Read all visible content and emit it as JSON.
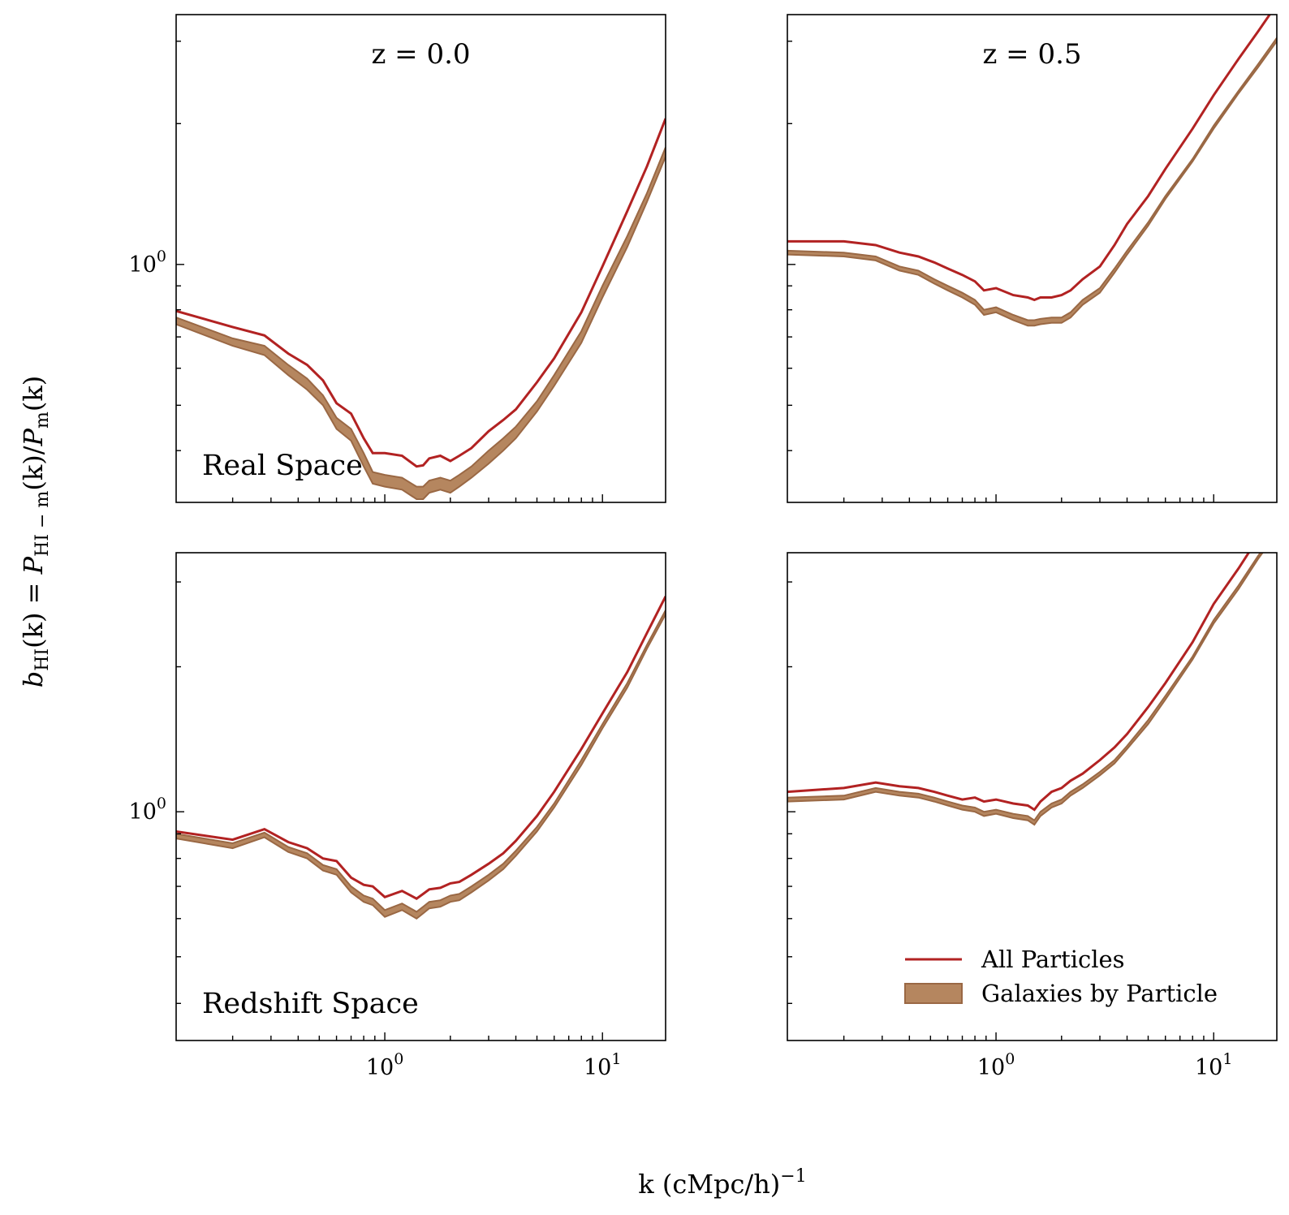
{
  "chart_data": {
    "type": "line",
    "layout": "2x2 grid, shared x axis per column, shared y axis per row",
    "xlabel": "k (cMpc/h)",
    "xlabel_exponent": "−1",
    "ylabel": {
      "lhs_sym": "b",
      "lhs_sub": "HI",
      "eq_mid": "(k) = ",
      "num_sym": "P",
      "num_sub": "HI − m",
      "num_arg": "(k)/",
      "den_sym": "P",
      "den_sub": "m",
      "den_arg": "(k)"
    },
    "xscale": "log",
    "yscale": "log",
    "xlim": [
      0.11,
      19.5
    ],
    "x_tick_labels": [
      {
        "value": 1,
        "base": "10",
        "exp": "0"
      },
      {
        "value": 10,
        "base": "10",
        "exp": "1"
      }
    ],
    "y_tick_labels": [
      {
        "value": 1,
        "base": "10",
        "exp": "0"
      }
    ],
    "rows": [
      {
        "label": "Real Space",
        "ylim": [
          0.31,
          3.42
        ]
      },
      {
        "label": "Redshift Space",
        "ylim": [
          0.335,
          3.45
        ]
      }
    ],
    "columns": [
      {
        "title": "z = 0.0"
      },
      {
        "title": "z = 0.5"
      }
    ],
    "legend": {
      "placement": "lower-right",
      "panel": "bottom-right",
      "entries": [
        {
          "label": "All Particles",
          "kind": "line"
        },
        {
          "label": "Galaxies by Particle",
          "kind": "band"
        }
      ]
    },
    "colors": {
      "all_particles": "#b22222",
      "band_fill": "#b5865f",
      "band_edge": "#9a6844"
    },
    "series": {
      "real_z0": {
        "x": [
          0.11,
          0.2,
          0.28,
          0.36,
          0.44,
          0.52,
          0.6,
          0.7,
          0.8,
          0.88,
          1.0,
          1.2,
          1.4,
          1.5,
          1.6,
          1.8,
          2.0,
          2.2,
          2.5,
          3.0,
          3.5,
          4.0,
          5.0,
          6.0,
          8.0,
          10.0,
          13.0,
          16.0,
          19.5
        ],
        "all": [
          0.795,
          0.735,
          0.705,
          0.645,
          0.61,
          0.565,
          0.505,
          0.48,
          0.425,
          0.395,
          0.395,
          0.39,
          0.37,
          0.372,
          0.385,
          0.39,
          0.38,
          0.39,
          0.405,
          0.44,
          0.465,
          0.49,
          0.56,
          0.63,
          0.79,
          0.99,
          1.3,
          1.62,
          2.05
        ],
        "band_upper": [
          0.77,
          0.695,
          0.67,
          0.61,
          0.57,
          0.525,
          0.47,
          0.445,
          0.395,
          0.36,
          0.355,
          0.35,
          0.335,
          0.335,
          0.345,
          0.35,
          0.345,
          0.355,
          0.37,
          0.4,
          0.425,
          0.45,
          0.51,
          0.58,
          0.72,
          0.9,
          1.15,
          1.42,
          1.78
        ],
        "band_lower": [
          0.745,
          0.67,
          0.64,
          0.58,
          0.54,
          0.5,
          0.445,
          0.42,
          0.37,
          0.34,
          0.335,
          0.33,
          0.315,
          0.315,
          0.325,
          0.33,
          0.325,
          0.335,
          0.35,
          0.375,
          0.4,
          0.425,
          0.485,
          0.55,
          0.68,
          0.85,
          1.09,
          1.36,
          1.7
        ]
      },
      "real_z05": {
        "x": [
          0.11,
          0.2,
          0.28,
          0.36,
          0.44,
          0.52,
          0.6,
          0.7,
          0.8,
          0.88,
          1.0,
          1.2,
          1.4,
          1.5,
          1.6,
          1.8,
          2.0,
          2.2,
          2.5,
          3.0,
          3.5,
          4.0,
          5.0,
          6.0,
          8.0,
          10.0,
          13.0,
          16.0,
          19.5
        ],
        "all": [
          1.12,
          1.12,
          1.1,
          1.06,
          1.04,
          1.01,
          0.98,
          0.95,
          0.92,
          0.88,
          0.89,
          0.86,
          0.85,
          0.84,
          0.85,
          0.85,
          0.86,
          0.88,
          0.93,
          0.99,
          1.1,
          1.22,
          1.4,
          1.6,
          1.95,
          2.3,
          2.75,
          3.15,
          3.6
        ],
        "band_upper": [
          1.07,
          1.06,
          1.04,
          0.99,
          0.97,
          0.93,
          0.9,
          0.87,
          0.84,
          0.8,
          0.81,
          0.78,
          0.76,
          0.76,
          0.765,
          0.77,
          0.77,
          0.79,
          0.84,
          0.89,
          0.98,
          1.07,
          1.23,
          1.4,
          1.68,
          1.98,
          2.35,
          2.68,
          3.05
        ],
        "band_lower": [
          1.05,
          1.04,
          1.02,
          0.97,
          0.95,
          0.91,
          0.88,
          0.85,
          0.82,
          0.78,
          0.79,
          0.76,
          0.74,
          0.74,
          0.745,
          0.75,
          0.75,
          0.77,
          0.82,
          0.87,
          0.96,
          1.05,
          1.21,
          1.38,
          1.66,
          1.95,
          2.32,
          2.64,
          3.0
        ]
      },
      "redshift_z0": {
        "x": [
          0.11,
          0.2,
          0.28,
          0.36,
          0.44,
          0.52,
          0.6,
          0.7,
          0.8,
          0.88,
          1.0,
          1.2,
          1.4,
          1.5,
          1.6,
          1.8,
          2.0,
          2.2,
          2.5,
          3.0,
          3.5,
          4.0,
          5.0,
          6.0,
          8.0,
          10.0,
          13.0,
          16.0,
          19.5
        ],
        "all": [
          0.91,
          0.875,
          0.92,
          0.865,
          0.84,
          0.8,
          0.79,
          0.73,
          0.705,
          0.7,
          0.665,
          0.685,
          0.66,
          0.675,
          0.69,
          0.695,
          0.71,
          0.715,
          0.74,
          0.78,
          0.82,
          0.87,
          0.98,
          1.1,
          1.35,
          1.6,
          1.95,
          2.35,
          2.8
        ],
        "band_upper": [
          0.9,
          0.86,
          0.905,
          0.845,
          0.82,
          0.775,
          0.76,
          0.7,
          0.67,
          0.66,
          0.625,
          0.645,
          0.62,
          0.635,
          0.65,
          0.655,
          0.67,
          0.675,
          0.7,
          0.74,
          0.78,
          0.83,
          0.93,
          1.04,
          1.28,
          1.52,
          1.85,
          2.22,
          2.62
        ],
        "band_lower": [
          0.88,
          0.84,
          0.885,
          0.825,
          0.8,
          0.755,
          0.74,
          0.68,
          0.65,
          0.64,
          0.605,
          0.625,
          0.6,
          0.615,
          0.63,
          0.635,
          0.65,
          0.655,
          0.68,
          0.72,
          0.76,
          0.81,
          0.91,
          1.02,
          1.25,
          1.49,
          1.81,
          2.18,
          2.57
        ]
      },
      "redshift_z05": {
        "x": [
          0.11,
          0.2,
          0.28,
          0.36,
          0.44,
          0.52,
          0.6,
          0.7,
          0.8,
          0.88,
          1.0,
          1.2,
          1.4,
          1.5,
          1.6,
          1.8,
          2.0,
          2.2,
          2.5,
          3.0,
          3.5,
          4.0,
          5.0,
          6.0,
          8.0,
          10.0,
          13.0,
          16.0,
          19.5
        ],
        "all": [
          1.1,
          1.12,
          1.15,
          1.13,
          1.12,
          1.1,
          1.08,
          1.06,
          1.07,
          1.05,
          1.06,
          1.04,
          1.03,
          1.01,
          1.05,
          1.1,
          1.12,
          1.16,
          1.2,
          1.28,
          1.36,
          1.45,
          1.65,
          1.85,
          2.25,
          2.7,
          3.2,
          3.7,
          4.2
        ],
        "band_upper": [
          1.07,
          1.08,
          1.12,
          1.1,
          1.09,
          1.07,
          1.05,
          1.03,
          1.02,
          1.0,
          1.01,
          0.99,
          0.98,
          0.96,
          1.0,
          1.04,
          1.06,
          1.1,
          1.14,
          1.21,
          1.28,
          1.37,
          1.55,
          1.74,
          2.1,
          2.5,
          2.95,
          3.4,
          3.85
        ],
        "band_lower": [
          1.05,
          1.06,
          1.1,
          1.08,
          1.07,
          1.05,
          1.03,
          1.01,
          1.0,
          0.98,
          0.99,
          0.97,
          0.96,
          0.94,
          0.98,
          1.02,
          1.04,
          1.08,
          1.12,
          1.19,
          1.26,
          1.35,
          1.52,
          1.71,
          2.07,
          2.46,
          2.9,
          3.35,
          3.79
        ]
      }
    },
    "panels": [
      {
        "row": 0,
        "col": 0,
        "series": "real_z0",
        "show_title": true,
        "show_row_label": true,
        "show_y_labels": true,
        "show_x_labels": false
      },
      {
        "row": 0,
        "col": 1,
        "series": "real_z05",
        "show_title": true,
        "show_row_label": false,
        "show_y_labels": false,
        "show_x_labels": false
      },
      {
        "row": 1,
        "col": 0,
        "series": "redshift_z0",
        "show_title": false,
        "show_row_label": true,
        "show_y_labels": true,
        "show_x_labels": true
      },
      {
        "row": 1,
        "col": 1,
        "series": "redshift_z05",
        "show_title": false,
        "show_row_label": false,
        "show_y_labels": false,
        "show_x_labels": true,
        "show_legend": true
      }
    ]
  }
}
